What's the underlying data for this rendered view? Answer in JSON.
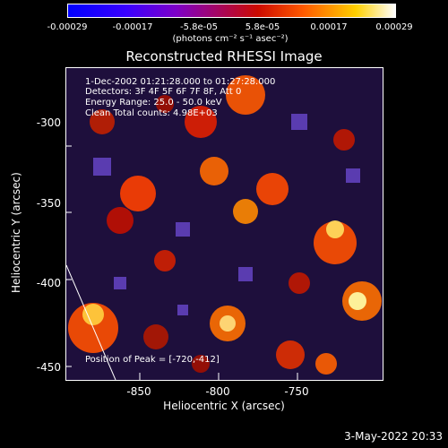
{
  "colorbar": {
    "ticks": [
      "-0.00029",
      "-0.00017",
      "-5.8e-05",
      "5.8e-05",
      "0.00017",
      "0.00029"
    ],
    "units": "(photons cm⁻² s⁻¹ asec⁻²)"
  },
  "title": "Reconstructed RHESSI Image",
  "info": {
    "time": "1-Dec-2002 01:21:28.000 to 01:27:28.000",
    "detectors": "Detectors: 3F 4F 5F 6F 7F 8F, Att 0",
    "energy": "Energy Range: 25.0 - 50.0 keV",
    "clean": "Clean    Total counts: 4.98E+03",
    "peak": "Position of Peak = [-720,-412]"
  },
  "axes": {
    "xlabel": "Heliocentric X (arcsec)",
    "ylabel": "Heliocentric Y (arcsec)",
    "xticks": [
      "-850",
      "-800",
      "-750"
    ],
    "yticks": [
      "-300",
      "-350",
      "-400",
      "-450"
    ],
    "xlim": [
      -895,
      -695
    ],
    "ylim": [
      -460,
      -263
    ]
  },
  "timestamp": "3-May-2022 20:33"
}
